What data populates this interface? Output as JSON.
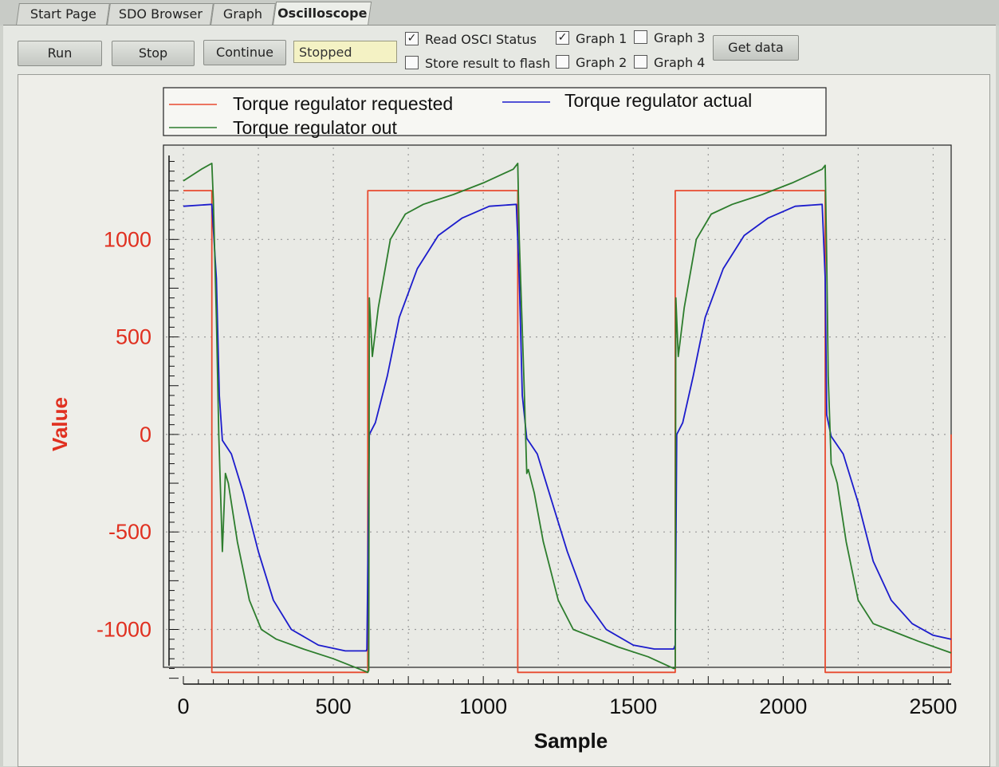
{
  "tabs": [
    {
      "label": "Start Page",
      "active": false
    },
    {
      "label": "SDO Browser",
      "active": false
    },
    {
      "label": "Graph",
      "active": false
    },
    {
      "label": "Oscilloscope",
      "active": true
    }
  ],
  "toolbar": {
    "run_label": "Run",
    "stop_label": "Stop",
    "continue_label": "Continue",
    "status_value": "Stopped",
    "read_osci_status": {
      "label": "Read OSCI Status",
      "checked": true
    },
    "store_result": {
      "label": "Store result to flash",
      "checked": false
    },
    "graph1": {
      "label": "Graph 1",
      "checked": true
    },
    "graph2": {
      "label": "Graph 2",
      "checked": false
    },
    "graph3": {
      "label": "Graph 3",
      "checked": false
    },
    "graph4": {
      "label": "Graph 4",
      "checked": false
    },
    "get_data_label": "Get data"
  },
  "chart_data": {
    "type": "line",
    "xlabel": "Sample",
    "ylabel": "Value",
    "xlim": [
      0,
      2560
    ],
    "ylim": [
      -1280,
      1410
    ],
    "xticks": [
      0,
      500,
      1000,
      1500,
      2000,
      2500
    ],
    "yticks": [
      1000,
      500,
      0,
      -500,
      -1000
    ],
    "grid": true,
    "legend_position": "top",
    "colors": {
      "requested": "#e84a2f",
      "actual": "#1c1ccc",
      "out": "#2d7d2d",
      "ytext": "#e03020"
    },
    "series": [
      {
        "name": "Torque regulator requested",
        "color": "#e84a2f",
        "points": [
          [
            0,
            1250
          ],
          [
            95,
            1250
          ],
          [
            95,
            -1220
          ],
          [
            615,
            -1220
          ],
          [
            615,
            1250
          ],
          [
            1115,
            1250
          ],
          [
            1115,
            -1220
          ],
          [
            1640,
            -1220
          ],
          [
            1640,
            1250
          ],
          [
            2140,
            1250
          ],
          [
            2140,
            -1220
          ],
          [
            2560,
            -1220
          ],
          [
            2560,
            0
          ]
        ]
      },
      {
        "name": "Torque regulator actual",
        "color": "#1c1ccc",
        "points": [
          [
            0,
            1170
          ],
          [
            95,
            1180
          ],
          [
            110,
            800
          ],
          [
            120,
            200
          ],
          [
            130,
            -30
          ],
          [
            160,
            -100
          ],
          [
            200,
            -300
          ],
          [
            250,
            -600
          ],
          [
            300,
            -850
          ],
          [
            360,
            -1000
          ],
          [
            450,
            -1080
          ],
          [
            540,
            -1110
          ],
          [
            610,
            -1110
          ],
          [
            612,
            -1100
          ],
          [
            620,
            0
          ],
          [
            640,
            60
          ],
          [
            680,
            300
          ],
          [
            720,
            600
          ],
          [
            780,
            850
          ],
          [
            850,
            1020
          ],
          [
            930,
            1110
          ],
          [
            1020,
            1170
          ],
          [
            1110,
            1180
          ],
          [
            1120,
            800
          ],
          [
            1130,
            200
          ],
          [
            1145,
            -20
          ],
          [
            1180,
            -100
          ],
          [
            1220,
            -300
          ],
          [
            1280,
            -600
          ],
          [
            1340,
            -850
          ],
          [
            1410,
            -1000
          ],
          [
            1500,
            -1080
          ],
          [
            1570,
            -1100
          ],
          [
            1635,
            -1100
          ],
          [
            1640,
            -1080
          ],
          [
            1645,
            0
          ],
          [
            1665,
            60
          ],
          [
            1700,
            300
          ],
          [
            1740,
            600
          ],
          [
            1800,
            850
          ],
          [
            1870,
            1020
          ],
          [
            1950,
            1110
          ],
          [
            2040,
            1170
          ],
          [
            2130,
            1180
          ],
          [
            2140,
            800
          ],
          [
            2145,
            100
          ],
          [
            2160,
            -10
          ],
          [
            2200,
            -100
          ],
          [
            2250,
            -350
          ],
          [
            2300,
            -650
          ],
          [
            2360,
            -850
          ],
          [
            2430,
            -970
          ],
          [
            2500,
            -1030
          ],
          [
            2560,
            -1050
          ]
        ]
      },
      {
        "name": "Torque regulator out",
        "color": "#2d7d2d",
        "points": [
          [
            0,
            1300
          ],
          [
            60,
            1360
          ],
          [
            95,
            1390
          ],
          [
            100,
            1200
          ],
          [
            110,
            600
          ],
          [
            118,
            0
          ],
          [
            130,
            -600
          ],
          [
            140,
            -200
          ],
          [
            150,
            -250
          ],
          [
            180,
            -550
          ],
          [
            220,
            -850
          ],
          [
            260,
            -1000
          ],
          [
            310,
            -1050
          ],
          [
            400,
            -1100
          ],
          [
            500,
            -1150
          ],
          [
            615,
            -1220
          ],
          [
            618,
            -1210
          ],
          [
            620,
            700
          ],
          [
            630,
            400
          ],
          [
            650,
            650
          ],
          [
            690,
            1000
          ],
          [
            740,
            1130
          ],
          [
            800,
            1180
          ],
          [
            900,
            1230
          ],
          [
            1000,
            1290
          ],
          [
            1100,
            1360
          ],
          [
            1115,
            1390
          ],
          [
            1120,
            1000
          ],
          [
            1135,
            300
          ],
          [
            1145,
            -200
          ],
          [
            1150,
            -180
          ],
          [
            1170,
            -300
          ],
          [
            1200,
            -550
          ],
          [
            1250,
            -850
          ],
          [
            1300,
            -1000
          ],
          [
            1350,
            -1030
          ],
          [
            1450,
            -1090
          ],
          [
            1550,
            -1140
          ],
          [
            1635,
            -1200
          ],
          [
            1640,
            -1200
          ],
          [
            1642,
            700
          ],
          [
            1650,
            400
          ],
          [
            1670,
            650
          ],
          [
            1710,
            1000
          ],
          [
            1760,
            1130
          ],
          [
            1830,
            1180
          ],
          [
            1930,
            1230
          ],
          [
            2030,
            1290
          ],
          [
            2130,
            1360
          ],
          [
            2140,
            1380
          ],
          [
            2145,
            900
          ],
          [
            2150,
            300
          ],
          [
            2160,
            -150
          ],
          [
            2165,
            -170
          ],
          [
            2180,
            -250
          ],
          [
            2210,
            -550
          ],
          [
            2250,
            -850
          ],
          [
            2300,
            -970
          ],
          [
            2350,
            -1000
          ],
          [
            2450,
            -1060
          ],
          [
            2560,
            -1120
          ]
        ]
      }
    ]
  }
}
